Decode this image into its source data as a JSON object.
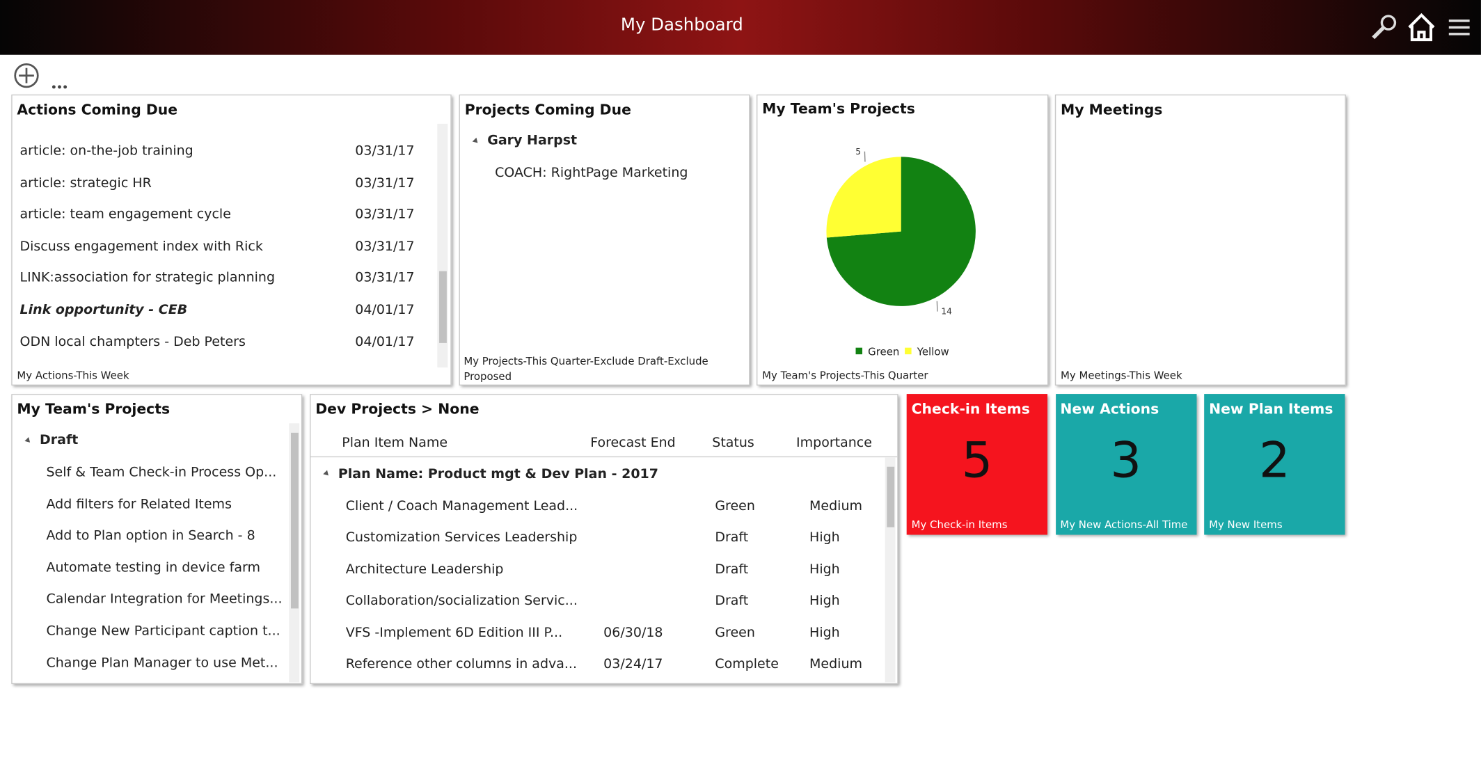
{
  "header": {
    "title": "My Dashboard"
  },
  "actions": {
    "title": "Actions Coming Due",
    "rows": [
      [
        "article: on-the-job training",
        "03/31/17"
      ],
      [
        "article: strategic HR",
        "03/31/17"
      ],
      [
        "article: team engagement cycle",
        "03/31/17"
      ],
      [
        "Discuss engagement index with Rick",
        "03/31/17"
      ],
      [
        "LINK:association for strategic planning",
        "03/31/17"
      ],
      [
        "Link opportunity - CEB",
        "04/01/17"
      ],
      [
        "ODN local champters - Deb Peters",
        "04/01/17"
      ]
    ],
    "footer": "My Actions-This Week"
  },
  "projects_due": {
    "title": "Projects Coming Due",
    "group": "Gary Harpst",
    "items": [
      "COACH: RightPage Marketing"
    ],
    "footer": "My Projects-This Quarter-Exclude Draft-Exclude Proposed"
  },
  "team_chart": {
    "title": "My Team's Projects",
    "type": "pie",
    "categories": [
      "Green",
      "Yellow"
    ],
    "values": [
      14,
      5
    ],
    "colors": [
      "#128212",
      "#ffff33"
    ],
    "footer": "My Team's Projects-This Quarter"
  },
  "meetings": {
    "title": "My Meetings",
    "footer": "My Meetings-This Week"
  },
  "team_list": {
    "title": "My Team's Projects",
    "group": "Draft",
    "items": [
      "Self & Team Check-in Process Op...",
      "Add filters for Related Items",
      "Add to Plan option in Search - 8",
      "Automate testing in device farm",
      "Calendar Integration for Meetings...",
      "Change New Participant caption t...",
      "Change Plan Manager to use Met..."
    ]
  },
  "dev": {
    "title": "Dev Projects > None",
    "columns": [
      "Plan Item Name",
      "Forecast End",
      "Status",
      "Importance"
    ],
    "group": "Plan Name: Product mgt & Dev Plan - 2017",
    "rows": [
      [
        "Client / Coach Management Lead...",
        null,
        "Green",
        "Medium"
      ],
      [
        "Customization Services Leadership",
        null,
        "Draft",
        "High"
      ],
      [
        "Architecture Leadership",
        null,
        "Draft",
        "High"
      ],
      [
        "Collaboration/socialization Servic...",
        null,
        "Draft",
        "High"
      ],
      [
        "VFS -Implement 6D Edition III P...",
        "06/30/18",
        "Green",
        "High"
      ],
      [
        "Reference other columns in adva...",
        "03/24/17",
        "Complete",
        "Medium"
      ]
    ]
  },
  "tiles": [
    {
      "title": "Check-in Items",
      "value": 5,
      "footer": "My Check-in Items",
      "color": "#f5141e"
    },
    {
      "title": "New Actions",
      "value": 3,
      "footer": "My New Actions-All Time",
      "color": "#1aa8a8"
    },
    {
      "title": "New Plan Items",
      "value": 2,
      "footer": "My New Items",
      "color": "#1aa8a8"
    }
  ]
}
